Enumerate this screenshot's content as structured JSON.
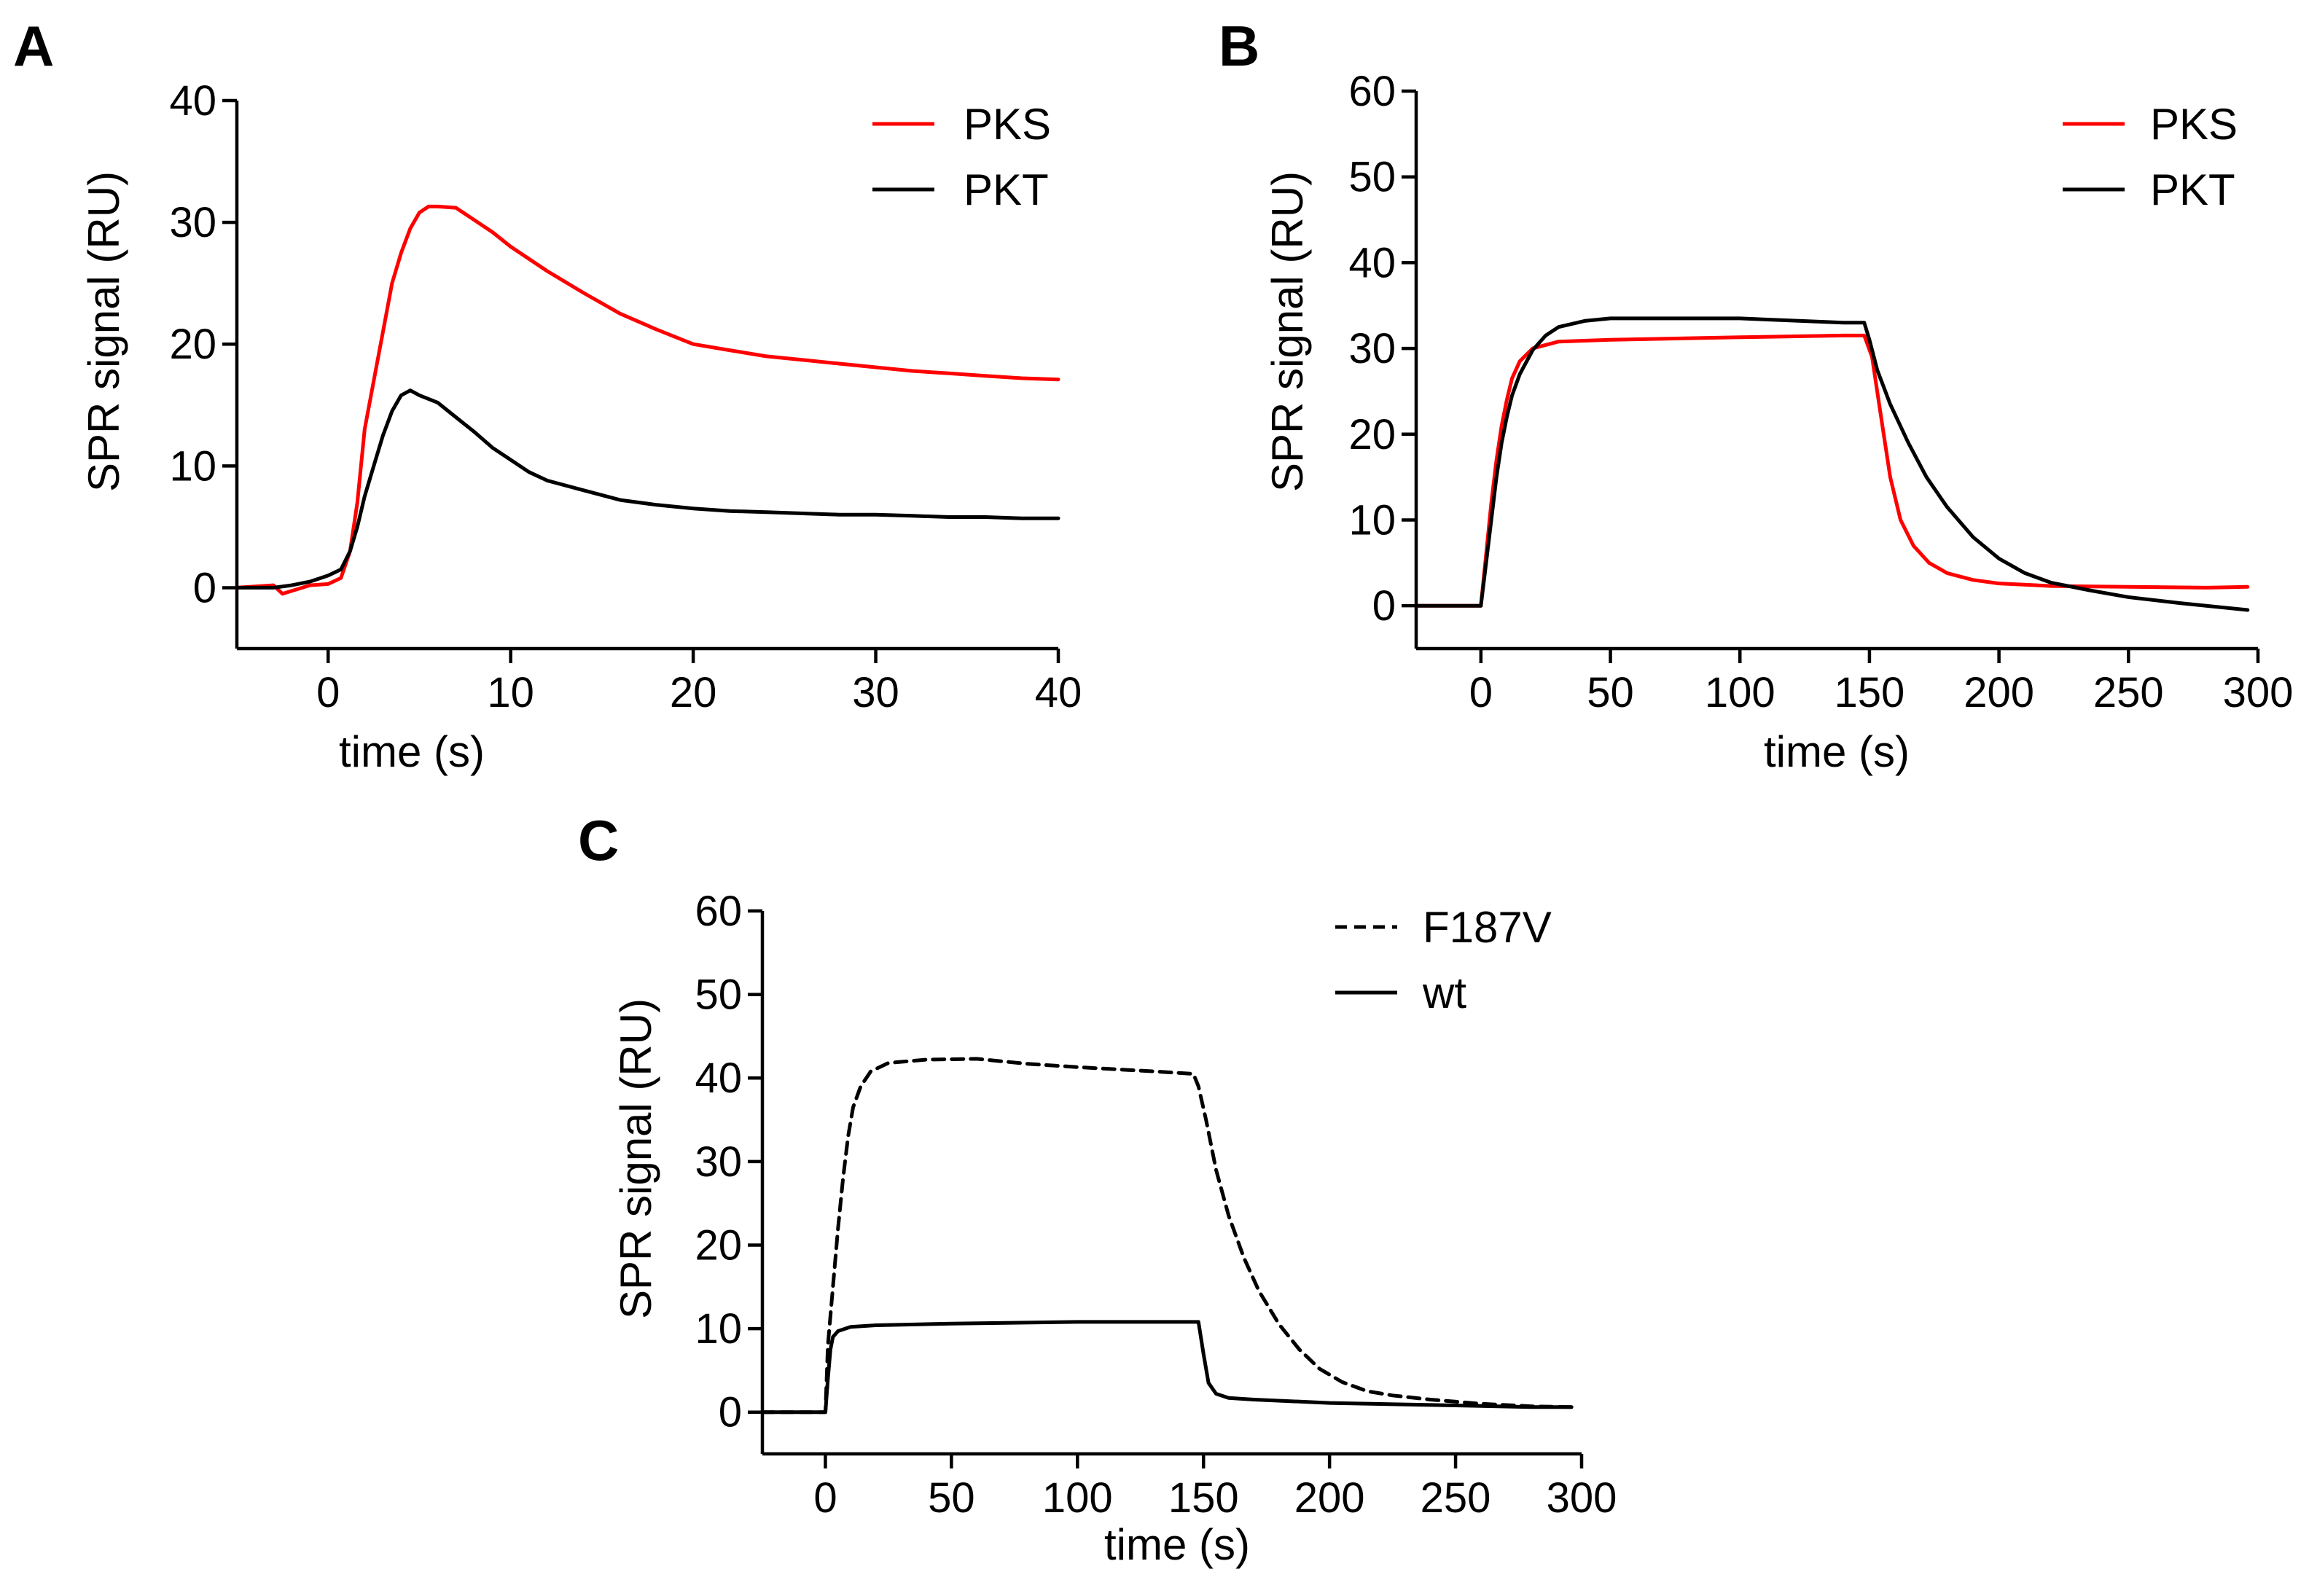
{
  "chart_data": [
    {
      "panel": "A",
      "type": "line",
      "xlabel": "time (s)",
      "ylabel": "SPR signal (RU)",
      "xlim": [
        -5,
        40
      ],
      "ylim": [
        -5,
        40
      ],
      "xticks": [
        0,
        10,
        20,
        30,
        40
      ],
      "yticks": [
        0,
        10,
        20,
        30,
        40
      ],
      "legend_position": "top-right",
      "series": [
        {
          "name": "PKS",
          "color": "#ff0000",
          "style": "solid",
          "points": [
            [
              -5,
              0
            ],
            [
              -3,
              0.2
            ],
            [
              -2.5,
              -0.5
            ],
            [
              -1,
              0.2
            ],
            [
              0,
              0.3
            ],
            [
              0.7,
              0.8
            ],
            [
              1.2,
              3
            ],
            [
              1.6,
              7
            ],
            [
              2,
              13
            ],
            [
              2.5,
              17
            ],
            [
              3,
              21
            ],
            [
              3.5,
              25
            ],
            [
              4,
              27.5
            ],
            [
              4.5,
              29.5
            ],
            [
              5,
              30.8
            ],
            [
              5.5,
              31.3
            ],
            [
              6,
              31.3
            ],
            [
              7,
              31.2
            ],
            [
              8,
              30.2
            ],
            [
              9,
              29.2
            ],
            [
              10,
              28
            ],
            [
              12,
              26
            ],
            [
              14,
              24.2
            ],
            [
              16,
              22.5
            ],
            [
              18,
              21.2
            ],
            [
              20,
              20
            ],
            [
              22,
              19.5
            ],
            [
              24,
              19
            ],
            [
              26,
              18.7
            ],
            [
              28,
              18.4
            ],
            [
              30,
              18.1
            ],
            [
              32,
              17.8
            ],
            [
              34,
              17.6
            ],
            [
              36,
              17.4
            ],
            [
              38,
              17.2
            ],
            [
              40,
              17.1
            ]
          ]
        },
        {
          "name": "PKT",
          "color": "#000000",
          "style": "solid",
          "points": [
            [
              -5,
              0
            ],
            [
              -3,
              0
            ],
            [
              -2,
              0.2
            ],
            [
              -1,
              0.5
            ],
            [
              0,
              1
            ],
            [
              0.7,
              1.5
            ],
            [
              1.2,
              3
            ],
            [
              1.6,
              5
            ],
            [
              2,
              7.5
            ],
            [
              2.5,
              10
            ],
            [
              3,
              12.5
            ],
            [
              3.5,
              14.5
            ],
            [
              4,
              15.8
            ],
            [
              4.5,
              16.2
            ],
            [
              5,
              15.8
            ],
            [
              6,
              15.2
            ],
            [
              7,
              14
            ],
            [
              8,
              12.8
            ],
            [
              9,
              11.5
            ],
            [
              10,
              10.5
            ],
            [
              11,
              9.5
            ],
            [
              12,
              8.8
            ],
            [
              14,
              8
            ],
            [
              16,
              7.2
            ],
            [
              18,
              6.8
            ],
            [
              20,
              6.5
            ],
            [
              22,
              6.3
            ],
            [
              24,
              6.2
            ],
            [
              26,
              6.1
            ],
            [
              28,
              6
            ],
            [
              30,
              6
            ],
            [
              32,
              5.9
            ],
            [
              34,
              5.8
            ],
            [
              36,
              5.8
            ],
            [
              38,
              5.7
            ],
            [
              40,
              5.7
            ]
          ]
        }
      ]
    },
    {
      "panel": "B",
      "type": "line",
      "xlabel": "time (s)",
      "ylabel": "SPR signal (RU)",
      "xlim": [
        -25,
        300
      ],
      "ylim": [
        -5,
        60
      ],
      "xticks": [
        0,
        50,
        100,
        150,
        200,
        250,
        300
      ],
      "yticks": [
        0,
        10,
        20,
        30,
        40,
        50,
        60
      ],
      "legend_position": "top-right",
      "series": [
        {
          "name": "PKS",
          "color": "#ff0000",
          "style": "solid",
          "points": [
            [
              -25,
              0
            ],
            [
              0,
              0
            ],
            [
              2,
              6
            ],
            [
              4,
              12
            ],
            [
              6,
              17
            ],
            [
              8,
              21
            ],
            [
              10,
              24
            ],
            [
              12,
              26.5
            ],
            [
              15,
              28.5
            ],
            [
              20,
              30
            ],
            [
              30,
              30.8
            ],
            [
              50,
              31
            ],
            [
              100,
              31.3
            ],
            [
              140,
              31.5
            ],
            [
              148,
              31.5
            ],
            [
              151,
              29
            ],
            [
              154,
              23
            ],
            [
              158,
              15
            ],
            [
              162,
              10
            ],
            [
              167,
              7
            ],
            [
              173,
              5
            ],
            [
              180,
              3.8
            ],
            [
              190,
              3
            ],
            [
              200,
              2.6
            ],
            [
              220,
              2.3
            ],
            [
              250,
              2.2
            ],
            [
              280,
              2.1
            ],
            [
              296,
              2.2
            ]
          ]
        },
        {
          "name": "PKT",
          "color": "#000000",
          "style": "solid",
          "points": [
            [
              -25,
              0
            ],
            [
              0,
              0
            ],
            [
              2,
              5
            ],
            [
              4,
              10
            ],
            [
              6,
              15
            ],
            [
              8,
              19
            ],
            [
              10,
              22
            ],
            [
              12,
              24.5
            ],
            [
              15,
              27
            ],
            [
              20,
              29.8
            ],
            [
              25,
              31.5
            ],
            [
              30,
              32.5
            ],
            [
              40,
              33.2
            ],
            [
              50,
              33.5
            ],
            [
              100,
              33.5
            ],
            [
              140,
              33
            ],
            [
              145,
              33
            ],
            [
              148,
              33
            ],
            [
              150,
              31
            ],
            [
              153,
              27.5
            ],
            [
              158,
              23.5
            ],
            [
              165,
              19
            ],
            [
              172,
              15
            ],
            [
              180,
              11.5
            ],
            [
              190,
              8
            ],
            [
              200,
              5.5
            ],
            [
              210,
              3.8
            ],
            [
              220,
              2.7
            ],
            [
              235,
              1.8
            ],
            [
              250,
              1
            ],
            [
              270,
              0.3
            ],
            [
              296,
              -0.5
            ]
          ]
        }
      ]
    },
    {
      "panel": "C",
      "type": "line",
      "xlabel": "time (s)",
      "ylabel": "SPR signal (RU)",
      "xlim": [
        -25,
        300
      ],
      "ylim": [
        -5,
        60
      ],
      "xticks": [
        0,
        50,
        100,
        150,
        200,
        250,
        300
      ],
      "yticks": [
        0,
        10,
        20,
        30,
        40,
        50,
        60
      ],
      "legend_position": "top-right",
      "series": [
        {
          "name": "F187V",
          "color": "#000000",
          "style": "dashed",
          "points": [
            [
              -25,
              0
            ],
            [
              0,
              0
            ],
            [
              1,
              8
            ],
            [
              3,
              15
            ],
            [
              5,
              22
            ],
            [
              7,
              28
            ],
            [
              9,
              33
            ],
            [
              11,
              36.5
            ],
            [
              14,
              39
            ],
            [
              18,
              40.8
            ],
            [
              25,
              41.8
            ],
            [
              40,
              42.2
            ],
            [
              60,
              42.3
            ],
            [
              80,
              41.7
            ],
            [
              100,
              41.3
            ],
            [
              130,
              40.8
            ],
            [
              146,
              40.5
            ],
            [
              148,
              39
            ],
            [
              151,
              35
            ],
            [
              155,
              29
            ],
            [
              160,
              23.5
            ],
            [
              166,
              18.5
            ],
            [
              172,
              14.5
            ],
            [
              180,
              10.5
            ],
            [
              188,
              7.5
            ],
            [
              196,
              5.2
            ],
            [
              205,
              3.6
            ],
            [
              215,
              2.5
            ],
            [
              225,
              2
            ],
            [
              240,
              1.5
            ],
            [
              260,
              1
            ],
            [
              280,
              0.7
            ],
            [
              296,
              0.6
            ]
          ]
        },
        {
          "name": "wt",
          "color": "#000000",
          "style": "solid",
          "points": [
            [
              -25,
              0
            ],
            [
              0,
              0
            ],
            [
              1,
              4
            ],
            [
              2,
              7.5
            ],
            [
              3,
              9
            ],
            [
              5,
              9.7
            ],
            [
              10,
              10.2
            ],
            [
              20,
              10.4
            ],
            [
              50,
              10.6
            ],
            [
              100,
              10.8
            ],
            [
              148,
              10.8
            ],
            [
              150,
              7
            ],
            [
              152,
              3.5
            ],
            [
              155,
              2.2
            ],
            [
              160,
              1.7
            ],
            [
              170,
              1.5
            ],
            [
              200,
              1.1
            ],
            [
              250,
              0.8
            ],
            [
              280,
              0.6
            ],
            [
              296,
              0.6
            ]
          ]
        }
      ]
    }
  ]
}
